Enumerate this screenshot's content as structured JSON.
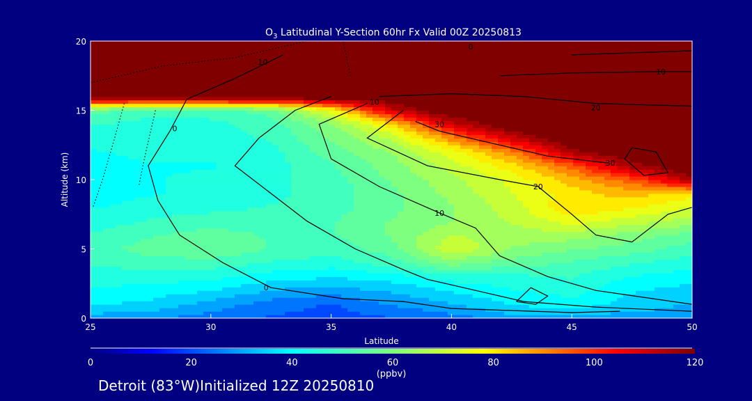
{
  "chart_data": {
    "type": "heatmap",
    "title": "O3 Latitudinal Y-Section 60hr  Fx Valid 00Z 20250813",
    "title_main": "O",
    "title_sub": "3",
    "title_rest": " Latitudinal Y-Section 60hr  Fx Valid 00Z 20250813",
    "xlabel": "Latitude",
    "ylabel": "Altitude (km)",
    "xlim": [
      25,
      50
    ],
    "ylim": [
      0,
      20
    ],
    "xticks": [
      "25",
      "30",
      "35",
      "40",
      "45",
      "50"
    ],
    "yticks": [
      "0",
      "5",
      "10",
      "15",
      "20"
    ],
    "grid_lat": [
      25,
      27.5,
      30,
      32.5,
      35,
      37.5,
      40,
      42.5,
      45,
      47.5,
      50
    ],
    "grid_alt": [
      0,
      1,
      2,
      3,
      4,
      5,
      6,
      7,
      8,
      9,
      10,
      11,
      12,
      13,
      14,
      15,
      16,
      17,
      18,
      19,
      20
    ],
    "values": [
      [
        30,
        28,
        25,
        22,
        20,
        22,
        25,
        30,
        30,
        30,
        30
      ],
      [
        38,
        36,
        30,
        25,
        22,
        28,
        32,
        38,
        40,
        35,
        32
      ],
      [
        42,
        40,
        38,
        32,
        30,
        33,
        38,
        42,
        45,
        38,
        35
      ],
      [
        45,
        45,
        44,
        40,
        38,
        40,
        45,
        46,
        48,
        42,
        40
      ],
      [
        48,
        50,
        50,
        47,
        45,
        50,
        60,
        55,
        52,
        48,
        45
      ],
      [
        50,
        55,
        58,
        52,
        50,
        55,
        72,
        62,
        58,
        55,
        50
      ],
      [
        48,
        52,
        55,
        52,
        52,
        58,
        68,
        65,
        65,
        60,
        55
      ],
      [
        45,
        48,
        50,
        50,
        52,
        58,
        62,
        68,
        75,
        70,
        65
      ],
      [
        42,
        45,
        46,
        48,
        50,
        56,
        62,
        70,
        82,
        78,
        72
      ],
      [
        40,
        42,
        44,
        46,
        50,
        56,
        64,
        72,
        80,
        85,
        80
      ],
      [
        40,
        42,
        44,
        46,
        50,
        58,
        66,
        74,
        85,
        95,
        115
      ],
      [
        40,
        42,
        42,
        45,
        52,
        60,
        70,
        80,
        95,
        115,
        125
      ],
      [
        42,
        44,
        44,
        46,
        55,
        63,
        75,
        90,
        115,
        125,
        125
      ],
      [
        45,
        44,
        45,
        48,
        58,
        68,
        90,
        110,
        125,
        125,
        125
      ],
      [
        48,
        45,
        46,
        50,
        62,
        80,
        110,
        125,
        125,
        125,
        125
      ],
      [
        55,
        50,
        50,
        55,
        75,
        110,
        125,
        125,
        125,
        125,
        125
      ],
      [
        125,
        125,
        125,
        125,
        125,
        125,
        125,
        125,
        125,
        125,
        125
      ],
      [
        125,
        125,
        125,
        125,
        125,
        125,
        125,
        125,
        125,
        125,
        125
      ],
      [
        125,
        125,
        125,
        125,
        125,
        125,
        125,
        125,
        125,
        125,
        125
      ],
      [
        125,
        125,
        125,
        125,
        125,
        125,
        125,
        125,
        125,
        125,
        125
      ],
      [
        125,
        125,
        125,
        125,
        125,
        125,
        125,
        125,
        125,
        125,
        125
      ]
    ],
    "colorbar": {
      "min": 0,
      "max": 120,
      "ticks": [
        "0",
        "20",
        "40",
        "60",
        "80",
        "100",
        "120"
      ],
      "label": "(ppbv)"
    },
    "contours": [
      {
        "dash": false,
        "points": [
          [
            33,
            19
          ],
          [
            31,
            17.3
          ],
          [
            29,
            15.8
          ],
          [
            28.3,
            13.5
          ],
          [
            27.4,
            11
          ],
          [
            27.8,
            8.5
          ],
          [
            28.7,
            6
          ],
          [
            30.5,
            4
          ],
          [
            32.5,
            2.2
          ],
          [
            35.5,
            1.4
          ],
          [
            38,
            1.2
          ],
          [
            40,
            0.7
          ],
          [
            45,
            0.4
          ],
          [
            47,
            0.5
          ]
        ]
      },
      {
        "dash": false,
        "points": [
          [
            35,
            16
          ],
          [
            33.5,
            15
          ],
          [
            32,
            13
          ],
          [
            31,
            11
          ],
          [
            32.5,
            9
          ],
          [
            34,
            7
          ],
          [
            36,
            5
          ],
          [
            38,
            3.5
          ],
          [
            39,
            2.8
          ],
          [
            41,
            2
          ],
          [
            43,
            1.2
          ],
          [
            46,
            0.8
          ],
          [
            50,
            0.5
          ]
        ]
      },
      {
        "dash": false,
        "points": [
          [
            36.5,
            15.5
          ],
          [
            34.5,
            14
          ],
          [
            35,
            11.5
          ],
          [
            37,
            9.5
          ],
          [
            39.5,
            7.6
          ],
          [
            41,
            6.5
          ],
          [
            42,
            4.5
          ],
          [
            44,
            3
          ],
          [
            46,
            2
          ],
          [
            50,
            1
          ]
        ]
      },
      {
        "dash": false,
        "points": [
          [
            38,
            15
          ],
          [
            36.5,
            13
          ],
          [
            39,
            11
          ],
          [
            42,
            10
          ],
          [
            43.6,
            9.5
          ],
          [
            45,
            7.5
          ],
          [
            46,
            6
          ],
          [
            47.5,
            5.5
          ],
          [
            49,
            7.5
          ],
          [
            50,
            8
          ]
        ]
      },
      {
        "dash": false,
        "points": [
          [
            38.5,
            14.2
          ],
          [
            39.5,
            13.5
          ],
          [
            42,
            12.5
          ],
          [
            44,
            11.7
          ],
          [
            46.5,
            11.2
          ]
        ]
      },
      {
        "dash": false,
        "points": [
          [
            47.5,
            12.3
          ],
          [
            48.5,
            12
          ],
          [
            49,
            10.5
          ],
          [
            48,
            10.3
          ],
          [
            47.2,
            11.5
          ],
          [
            47.5,
            12.3
          ]
        ]
      },
      {
        "dash": false,
        "points": [
          [
            37,
            16
          ],
          [
            40,
            16.2
          ],
          [
            43,
            16
          ],
          [
            46,
            15.5
          ],
          [
            50,
            15.3
          ]
        ]
      },
      {
        "dash": false,
        "points": [
          [
            42,
            17.5
          ],
          [
            45,
            17.7
          ],
          [
            48.7,
            17.8
          ],
          [
            50,
            17.8
          ]
        ]
      },
      {
        "dash": false,
        "points": [
          [
            45,
            19
          ],
          [
            50,
            19.3
          ]
        ]
      },
      {
        "dash": false,
        "points": [
          [
            42.7,
            1.2
          ],
          [
            43.3,
            2.2
          ],
          [
            44,
            1.6
          ],
          [
            43.5,
            1
          ],
          [
            42.7,
            1.2
          ]
        ]
      },
      {
        "dash": true,
        "points": [
          [
            26.4,
            15.5
          ],
          [
            26,
            13
          ],
          [
            25.5,
            10
          ],
          [
            25.1,
            8
          ]
        ]
      },
      {
        "dash": true,
        "points": [
          [
            27.7,
            15
          ],
          [
            27.3,
            12
          ],
          [
            27,
            9.5
          ]
        ]
      },
      {
        "dash": true,
        "points": [
          [
            25,
            17
          ],
          [
            28,
            18.2
          ],
          [
            31,
            18.8
          ],
          [
            34,
            20
          ]
        ]
      },
      {
        "dash": true,
        "points": [
          [
            35.5,
            20
          ],
          [
            35.8,
            17.5
          ]
        ]
      }
    ],
    "contour_labels": [
      {
        "text": "0",
        "lat": 28.5,
        "alt": 13.7
      },
      {
        "text": "0",
        "lat": 32.3,
        "alt": 2.2
      },
      {
        "text": "10",
        "lat": 39.5,
        "alt": 7.6
      },
      {
        "text": "20",
        "lat": 43.6,
        "alt": 9.5
      },
      {
        "text": "30",
        "lat": 46.6,
        "alt": 11.2
      },
      {
        "text": "30",
        "lat": 39.5,
        "alt": 14
      },
      {
        "text": "20",
        "lat": 46,
        "alt": 15.2
      },
      {
        "text": "10",
        "lat": 36.8,
        "alt": 15.6
      },
      {
        "text": "10",
        "lat": 48.7,
        "alt": 17.8
      },
      {
        "text": "-10",
        "lat": 32.1,
        "alt": 18.5
      },
      {
        "text": "0",
        "lat": 40.8,
        "alt": 19.6
      }
    ]
  },
  "footer": "Detroit (83°W)Initialized 12Z 20250810"
}
